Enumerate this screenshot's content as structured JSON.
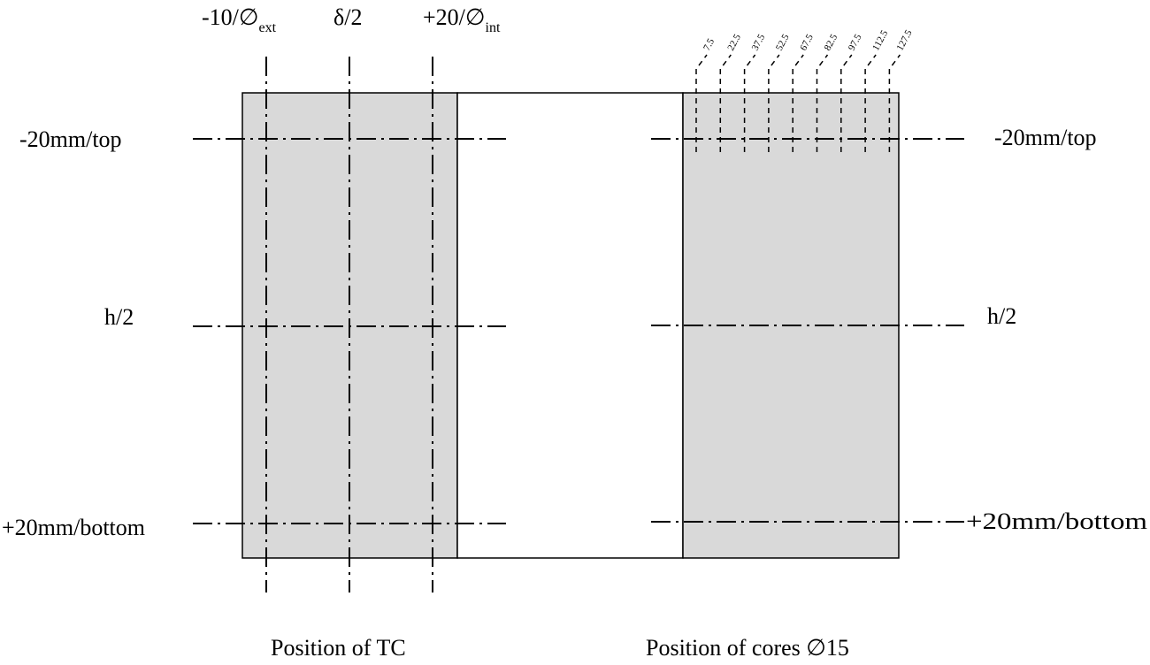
{
  "left_panel": {
    "caption": "Position of TC",
    "col_labels": [
      {
        "main": "-10/∅",
        "sub": "ext"
      },
      {
        "main": "δ/2",
        "sub": ""
      },
      {
        "main": "+20/∅",
        "sub": "int"
      }
    ]
  },
  "right_panel": {
    "caption": "Position of cores ∅15",
    "core_labels": [
      "7.5",
      "22.5",
      "37.5",
      "52.5",
      "67.5",
      "82.5",
      "97.5",
      "112.5",
      "127.5"
    ]
  },
  "row_labels_left": [
    "-20mm/top",
    "h/2",
    "+20mm/bottom"
  ],
  "row_labels_right": [
    "-20mm/top",
    "h/2",
    "+20mm/bottom"
  ]
}
